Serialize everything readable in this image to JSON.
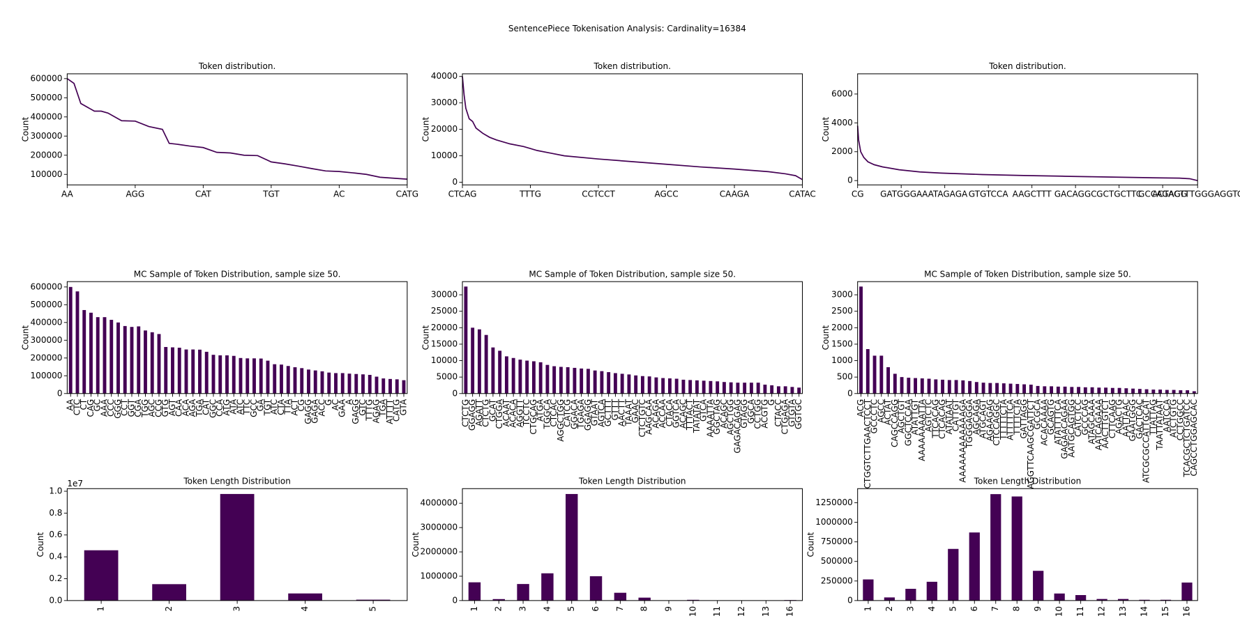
{
  "title": "SentencePiece Tokenisation Analysis: Cardinality=16384",
  "chart_data": [
    {
      "type": "line",
      "title": "Token distribution.",
      "ylabel": "Count",
      "color": "#440154",
      "x": [
        0,
        1,
        2,
        4,
        5,
        6,
        8,
        10,
        12,
        14,
        15,
        16,
        18,
        20,
        22,
        24,
        26,
        28,
        30,
        32,
        34,
        36,
        38,
        40,
        42,
        44,
        46,
        48,
        50
      ],
      "values": [
        600000,
        575000,
        470000,
        430000,
        430000,
        420000,
        380000,
        378000,
        350000,
        335000,
        262000,
        258000,
        248000,
        240000,
        215000,
        212000,
        200000,
        198000,
        165000,
        155000,
        143000,
        130000,
        118000,
        115000,
        108000,
        100000,
        85000,
        80000,
        75000
      ],
      "xlim": [
        0,
        50
      ],
      "xticks": [
        {
          "value": 0,
          "label": "AA"
        },
        {
          "value": 10,
          "label": "AGG"
        },
        {
          "value": 20,
          "label": "CAT"
        },
        {
          "value": 30,
          "label": "TGT"
        },
        {
          "value": 40,
          "label": "AC"
        },
        {
          "value": 50,
          "label": "CATG"
        }
      ],
      "ylim": [
        45000,
        625000
      ],
      "yticks": [
        100000,
        200000,
        300000,
        400000,
        500000,
        600000
      ]
    },
    {
      "type": "line",
      "title": "Token distribution.",
      "ylabel": "Count",
      "color": "#440154",
      "x": [
        0,
        0.5,
        1,
        2,
        3,
        4,
        6,
        8,
        10,
        14,
        18,
        22,
        26,
        30,
        40,
        50,
        60,
        70,
        80,
        90,
        95,
        98,
        100
      ],
      "values": [
        40000,
        33000,
        28000,
        24000,
        23000,
        20500,
        18500,
        17000,
        16000,
        14500,
        13500,
        12000,
        11000,
        10000,
        8800,
        7800,
        6800,
        5800,
        5000,
        4000,
        3200,
        2500,
        1000
      ],
      "xlim": [
        0,
        100
      ],
      "xticks": [
        {
          "value": 0,
          "label": "CTCAG"
        },
        {
          "value": 20,
          "label": "TTTG"
        },
        {
          "value": 40,
          "label": "CCTCCT"
        },
        {
          "value": 60,
          "label": "AGCC"
        },
        {
          "value": 80,
          "label": "CAAGA"
        },
        {
          "value": 100,
          "label": "CATAC"
        }
      ],
      "ylim": [
        -1000,
        41000
      ],
      "yticks": [
        0,
        10000,
        20000,
        30000,
        40000
      ]
    },
    {
      "type": "line",
      "title": "Token distribution.",
      "ylabel": "Count",
      "color": "#440154",
      "x": [
        0,
        50,
        150,
        300,
        500,
        800,
        1200,
        2000,
        3000,
        4000,
        6000,
        8000,
        10000,
        12000,
        14000,
        15500,
        16000,
        16383
      ],
      "values": [
        3800,
        2800,
        2000,
        1600,
        1300,
        1100,
        950,
        750,
        600,
        520,
        420,
        350,
        300,
        250,
        200,
        170,
        130,
        0
      ],
      "xlim": [
        0,
        16383
      ],
      "xticks": [
        {
          "value": 0,
          "label": "CG"
        },
        {
          "value": 2100,
          "label": "GATGGGA"
        },
        {
          "value": 4200,
          "label": "AATAGAGA"
        },
        {
          "value": 6300,
          "label": "GTGTCCA"
        },
        {
          "value": 8400,
          "label": "AAGCTTT"
        },
        {
          "value": 10500,
          "label": "GACAGGC"
        },
        {
          "value": 12600,
          "label": "GCTGCTTC"
        },
        {
          "value": 14700,
          "label": "GCCAGAGG"
        },
        {
          "value": 16383,
          "label": "ACTACTTTGGGAGGTC"
        }
      ],
      "ylim": [
        -300,
        7400
      ],
      "yticks": [
        0,
        2000,
        4000,
        6000
      ]
    },
    {
      "type": "bar",
      "title": "MC Sample of Token Distribution, sample size 50.",
      "ylabel": "Count",
      "color": "#440154",
      "categories": [
        "AA",
        "CTC",
        "CT",
        "CAG",
        "GC",
        "AAA",
        "CCC",
        "GGG",
        "CCT",
        "GGT",
        "CGA",
        "TGG",
        "AGC",
        "CCG",
        "GTG",
        "AGT",
        "CAA",
        "ACA",
        "AGA",
        "TGA",
        "CAT",
        "GGC",
        "CCA",
        "ATG",
        "ATA",
        "ATC",
        "TTC",
        "GCC",
        "GA",
        "TGT",
        "ATC",
        "CTA",
        "TTA",
        "ACT",
        "CG",
        "GAGG",
        "GAGA",
        "ACC",
        "G",
        "AC",
        "GAA",
        "A",
        "GAGG",
        "GTC",
        "TTTG",
        "AGAG",
        "TGA",
        "ATTTT",
        "CATG",
        "GTA"
      ],
      "values": [
        600000,
        575000,
        470000,
        455000,
        430000,
        430000,
        415000,
        400000,
        380000,
        375000,
        378000,
        355000,
        345000,
        335000,
        262000,
        260000,
        258000,
        248000,
        248000,
        247000,
        235000,
        218000,
        215000,
        215000,
        212000,
        200000,
        198000,
        198000,
        197000,
        185000,
        165000,
        163000,
        155000,
        148000,
        143000,
        135000,
        130000,
        125000,
        118000,
        115000,
        115000,
        112000,
        110000,
        108000,
        105000,
        95000,
        85000,
        82000,
        80000,
        75000
      ],
      "ylim": [
        0,
        630000
      ],
      "yticks": [
        0,
        100000,
        200000,
        300000,
        400000,
        500000,
        600000
      ]
    },
    {
      "type": "bar",
      "title": "MC Sample of Token Distribution, sample size 50.",
      "ylabel": "Count",
      "color": "#440154",
      "categories": [
        "CTCTG",
        "GGAGG",
        "AGATT",
        "CTCTG",
        "GCAT",
        "CTGGA",
        "ACAAT",
        "ACACA",
        "AGGTT",
        "TCCTC",
        "CTGCAG",
        "ATGA",
        "TGGCA",
        "CTCAC",
        "AGGCTGG",
        "CATCG",
        "GGACA",
        "TGAGA",
        "GGAGG",
        "GTAAT",
        "AGTCA",
        "GCTTT",
        "GTTT",
        "AACTT",
        "TAAAT",
        "GAAC",
        "CTCTGTC",
        "AAGCAA",
        "ACAGA",
        "ACCAA",
        "CTACA",
        "GGTCA",
        "ACAGC",
        "TTTACT",
        "TATATAT",
        "GTCA",
        "AAAATTA",
        "GGCTAG",
        "ACAGC",
        "AGCTGG",
        "GAGACAGAG",
        "GTAGG",
        "GGCA",
        "CCTGG",
        "ACGTG",
        "G",
        "CTACC",
        "CTGAGA",
        "GTGTA",
        "GGTGC"
      ],
      "values": [
        32500,
        20000,
        19500,
        17800,
        14000,
        13000,
        11300,
        10800,
        10300,
        10000,
        9800,
        9500,
        8700,
        8300,
        8100,
        8000,
        7800,
        7600,
        7500,
        7000,
        6800,
        6500,
        6200,
        6000,
        5800,
        5500,
        5300,
        5200,
        4900,
        4700,
        4600,
        4500,
        4200,
        4100,
        4000,
        3900,
        3800,
        3700,
        3500,
        3400,
        3300,
        3300,
        3300,
        3300,
        2700,
        2500,
        2200,
        2200,
        2000,
        1800
      ],
      "ylim": [
        0,
        34000
      ],
      "yticks": [
        0,
        5000,
        10000,
        15000,
        20000,
        25000,
        30000
      ]
    },
    {
      "type": "bar",
      "title": "MC Sample of Token Distribution, sample size 50.",
      "ylabel": "Count",
      "color": "#440154",
      "categories": [
        "ACG",
        "CTGGTCTTGAACTCCT",
        "GCCCTC",
        "AGCC",
        "ACTAT",
        "CAGCCAGG",
        "AGCTGT",
        "GGCTCCAA",
        "ATATTGT",
        "AAAAAAAATTA",
        "AGTCTC",
        "TTCACAG",
        "CTCACAG",
        "ATATAAT",
        "CATTGT",
        "AAAAAAAAAAAAGA",
        "TGGGAGGA",
        "AGCAGA",
        "ATGCAGT",
        "AGAAGAG",
        "CTCCAGGC",
        "TTTTTCTA",
        "ATTTTTCA",
        "TTTTCTA",
        "GATTAGG",
        "AGGTTCAAGCGATTCT",
        "GCGCA",
        "ACACAAAA",
        "GCAGTG",
        "ATATTTTCA",
        "GAGAACAGAA",
        "AATGCAGTGG",
        "CATCTCC",
        "GCCCAG",
        "ATAGCAAA",
        "AATCAGAAA",
        "AACTTGTCT",
        "CTTCAAG",
        "AGACTG",
        "AATTAAC",
        "GAATGGG",
        "GACTCAC",
        "ATCGCGCCATTGCAT",
        "TTATTAG",
        "TAATTATAAT",
        "AATCCA",
        "ATCTGTG",
        "CCTGGCC",
        "TCACGCTCTGATCC",
        "CAGCCTGGAGCAC"
      ],
      "values": [
        3250,
        1350,
        1150,
        1150,
        800,
        600,
        500,
        480,
        470,
        460,
        450,
        430,
        420,
        410,
        410,
        400,
        380,
        350,
        330,
        320,
        320,
        310,
        300,
        290,
        280,
        270,
        230,
        220,
        220,
        210,
        210,
        200,
        200,
        190,
        190,
        180,
        180,
        170,
        170,
        160,
        150,
        140,
        130,
        120,
        120,
        110,
        110,
        100,
        100,
        70
      ],
      "ylim": [
        0,
        3400
      ],
      "yticks": [
        0,
        500,
        1000,
        1500,
        2000,
        2500,
        3000
      ]
    },
    {
      "type": "bar",
      "title": "Token Length Distribution",
      "ylabel": "Count",
      "color": "#440154",
      "y_offset_label": "1e7",
      "categories": [
        "1",
        "2",
        "3",
        "4",
        "5"
      ],
      "values": [
        4600000,
        1500000,
        9750000,
        650000,
        80000
      ],
      "ylim": [
        0,
        10237500
      ],
      "yticks": [
        {
          "value": 0,
          "label": "0.0"
        },
        {
          "value": 2000000,
          "label": "0.2"
        },
        {
          "value": 4000000,
          "label": "0.4"
        },
        {
          "value": 6000000,
          "label": "0.6"
        },
        {
          "value": 8000000,
          "label": "0.8"
        },
        {
          "value": 10000000,
          "label": "1.0"
        }
      ]
    },
    {
      "type": "bar",
      "title": "Token Length Distribution",
      "ylabel": "Count",
      "color": "#440154",
      "categories": [
        "1",
        "2",
        "3",
        "4",
        "5",
        "6",
        "7",
        "8",
        "9",
        "10",
        "11",
        "12",
        "13",
        "16"
      ],
      "values": [
        750000,
        60000,
        680000,
        1120000,
        4380000,
        1000000,
        320000,
        120000,
        5000,
        30000,
        3000,
        2000,
        1000,
        20000
      ],
      "ylim": [
        0,
        4600000
      ],
      "yticks": [
        0,
        1000000,
        2000000,
        3000000,
        4000000
      ]
    },
    {
      "type": "bar",
      "title": "Token Length Distribution",
      "ylabel": "Count",
      "color": "#440154",
      "categories": [
        "1",
        "2",
        "3",
        "4",
        "5",
        "6",
        "7",
        "8",
        "9",
        "10",
        "11",
        "12",
        "13",
        "14",
        "15",
        "16"
      ],
      "values": [
        270000,
        40000,
        150000,
        240000,
        660000,
        870000,
        1360000,
        1330000,
        380000,
        90000,
        70000,
        20000,
        20000,
        10000,
        10000,
        230000
      ],
      "ylim": [
        0,
        1430000
      ],
      "yticks": [
        0,
        250000,
        500000,
        750000,
        1000000,
        1250000
      ]
    }
  ]
}
